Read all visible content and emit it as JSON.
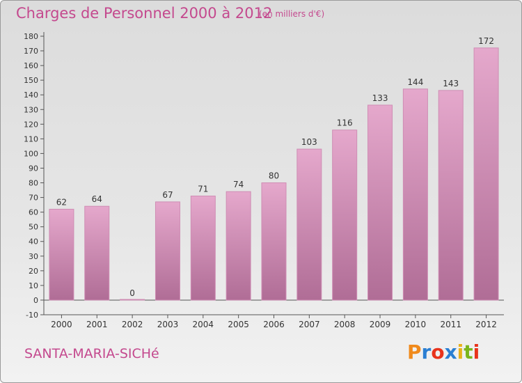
{
  "header": {
    "title": "Charges de Personnel 2000 à 2012",
    "subtitle": "(en milliers d'€)"
  },
  "footer": {
    "commune": "SANTA-MARIA-SICHé",
    "logo_text": "Proxiti",
    "logo_colors": [
      "#f08a1c",
      "#2b7fd3",
      "#e8331c",
      "#2b7fd3",
      "#e8b21c",
      "#7ab51d",
      "#e8331c"
    ]
  },
  "colors": {
    "bar_top": "#e5a8cc",
    "bar_bottom": "#b06d96",
    "accent": "#c4498e"
  },
  "chart_data": {
    "type": "bar",
    "categories": [
      "2000",
      "2001",
      "2002",
      "2003",
      "2004",
      "2005",
      "2006",
      "2007",
      "2008",
      "2009",
      "2010",
      "2011",
      "2012"
    ],
    "values": [
      62,
      64,
      0,
      67,
      71,
      74,
      80,
      103,
      116,
      133,
      144,
      143,
      172
    ],
    "ylim": [
      -10,
      180
    ],
    "yticks": [
      -10,
      0,
      10,
      20,
      30,
      40,
      50,
      60,
      70,
      80,
      90,
      100,
      110,
      120,
      130,
      140,
      150,
      160,
      170,
      180
    ],
    "grid": false,
    "legend": "none"
  }
}
